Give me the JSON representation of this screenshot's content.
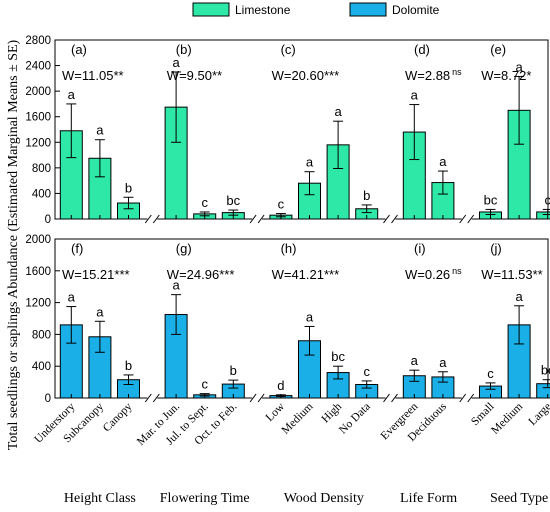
{
  "chart_data": {
    "type": "bar",
    "ylabel": "Total seedlings or saplings  Abundance (Estimated  Marginal Means ± SE)",
    "legend": {
      "placement": "top-center",
      "items": [
        {
          "name": "Limestone",
          "color": "#2EE8A8"
        },
        {
          "name": "Dolomite",
          "color": "#1AAFE6"
        }
      ]
    },
    "groups": [
      {
        "name": "Height Class",
        "categories": [
          "Understory",
          "Subcanopy",
          "Canopy"
        ]
      },
      {
        "name": "Flowering Time",
        "categories": [
          "Mar. to Jun.",
          "Jul. to Sept.",
          "Oct. to Feb."
        ]
      },
      {
        "name": "Wood Density",
        "categories": [
          "Low",
          "Medium",
          "High",
          "No Data"
        ]
      },
      {
        "name": "Life Form",
        "categories": [
          "Evergreen",
          "Deciduous"
        ]
      },
      {
        "name": "Seed Type",
        "categories": [
          "Small",
          "Medium",
          "Large"
        ]
      }
    ],
    "panels": [
      {
        "series": "Limestone",
        "ylim": [
          0,
          2800
        ],
        "yticks": [
          0,
          400,
          800,
          1200,
          1600,
          2000,
          2400,
          2800
        ],
        "subplots": [
          {
            "label": "(a)",
            "stat": "W=11.05",
            "sig": "**",
            "values": [
              1380,
              950,
              250
            ],
            "errors": [
              420,
              290,
              90
            ],
            "letters": [
              "a",
              "a",
              "b"
            ]
          },
          {
            "label": "(b)",
            "stat": "W=9.50",
            "sig": "**",
            "values": [
              1750,
              80,
              100
            ],
            "errors": [
              550,
              30,
              40
            ],
            "letters": [
              "a",
              "c",
              "bc"
            ]
          },
          {
            "label": "(c)",
            "stat": "W=20.60",
            "sig": "***",
            "values": [
              60,
              560,
              1160,
              160
            ],
            "errors": [
              25,
              180,
              370,
              60
            ],
            "letters": [
              "c",
              "a",
              "a",
              "b"
            ]
          },
          {
            "label": "(d)",
            "stat": "W=2.88",
            "sig": "ns",
            "values": [
              1360,
              570
            ],
            "errors": [
              430,
              180
            ],
            "letters": [
              "a",
              "a"
            ]
          },
          {
            "label": "(e)",
            "stat": "W=8.72",
            "sig": "*",
            "values": [
              110,
              1700,
              110
            ],
            "errors": [
              40,
              530,
              40
            ],
            "letters": [
              "bc",
              "a",
              "c"
            ]
          }
        ]
      },
      {
        "series": "Dolomite",
        "ylim": [
          0,
          2000
        ],
        "yticks": [
          0,
          400,
          800,
          1200,
          1600,
          2000
        ],
        "subplots": [
          {
            "label": "(f)",
            "stat": "W=15.21",
            "sig": "***",
            "values": [
              920,
              770,
              230
            ],
            "errors": [
              230,
              195,
              60
            ],
            "letters": [
              "a",
              "a",
              "b"
            ]
          },
          {
            "label": "(g)",
            "stat": "W=24.96",
            "sig": "***",
            "values": [
              1050,
              40,
              175
            ],
            "errors": [
              250,
              15,
              50
            ],
            "letters": [
              "a",
              "c",
              "b"
            ]
          },
          {
            "label": "(h)",
            "stat": "W=41.21",
            "sig": "***",
            "values": [
              30,
              720,
              320,
              170
            ],
            "errors": [
              10,
              180,
              80,
              45
            ],
            "letters": [
              "d",
              "a",
              "bc",
              "c"
            ]
          },
          {
            "label": "(i)",
            "stat": "W=0.26",
            "sig": "ns",
            "values": [
              280,
              265
            ],
            "errors": [
              70,
              65
            ],
            "letters": [
              "a",
              "a"
            ]
          },
          {
            "label": "(j)",
            "stat": "W=11.53",
            "sig": "**",
            "values": [
              150,
              920,
              180
            ],
            "errors": [
              40,
              240,
              50
            ],
            "letters": [
              "c",
              "a",
              "bc"
            ]
          }
        ]
      }
    ],
    "grid": false
  }
}
